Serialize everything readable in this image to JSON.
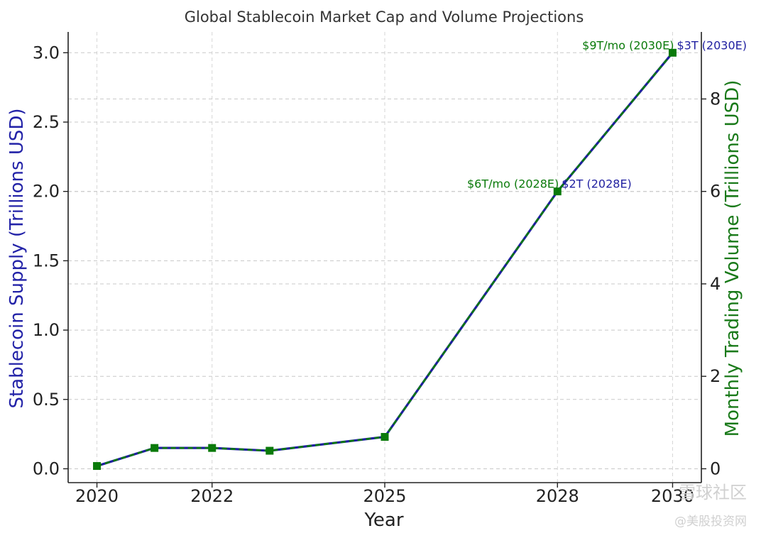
{
  "chart_data": {
    "type": "line",
    "title": "Global Stablecoin Market Cap and Volume Projections",
    "xlabel": "Year",
    "ylabel_left": "Stablecoin Supply (Trillions USD)",
    "ylabel_right": "Monthly Trading Volume (Trillions USD)",
    "x": [
      2020,
      2021,
      2022,
      2023,
      2025,
      2028,
      2030
    ],
    "xlim": [
      2019.5,
      2030.5
    ],
    "xticks": [
      2020,
      2022,
      2025,
      2028,
      2030
    ],
    "ylim_left": [
      -0.1,
      3.15
    ],
    "yticks_left": [
      "0.0",
      "0.5",
      "1.0",
      "1.5",
      "2.0",
      "2.5",
      "3.0"
    ],
    "ylim_right": [
      -0.3,
      9.45
    ],
    "yticks_right": [
      "0",
      "2",
      "4",
      "6",
      "8"
    ],
    "grid": true,
    "series": [
      {
        "name": "Stablecoin Supply",
        "axis": "left",
        "color": "#1f1fa0",
        "line_style": "solid",
        "values": [
          0.02,
          0.15,
          0.15,
          0.13,
          0.23,
          2.0,
          3.0
        ]
      },
      {
        "name": "Monthly Trading Volume",
        "axis": "right",
        "color": "#0a7a0a",
        "line_style": "dashed",
        "marker": "square",
        "values": [
          0.06,
          0.45,
          0.45,
          0.39,
          0.69,
          6.0,
          9.0
        ]
      }
    ],
    "annotations": [
      {
        "text": "$6T/mo (2028E)",
        "color": "#0a7a0a",
        "x": 2028,
        "y_right": 6.0
      },
      {
        "text": "$2T (2028E)",
        "color": "#1f1fa0",
        "x": 2028,
        "y_left": 2.0
      },
      {
        "text": "$9T/mo (2030E)",
        "color": "#0a7a0a",
        "x": 2030,
        "y_right": 9.0
      },
      {
        "text": "$3T (2030E)",
        "color": "#1f1fa0",
        "x": 2030,
        "y_left": 3.0
      }
    ],
    "watermark": [
      "雪球社区",
      "@美股投资网"
    ]
  }
}
